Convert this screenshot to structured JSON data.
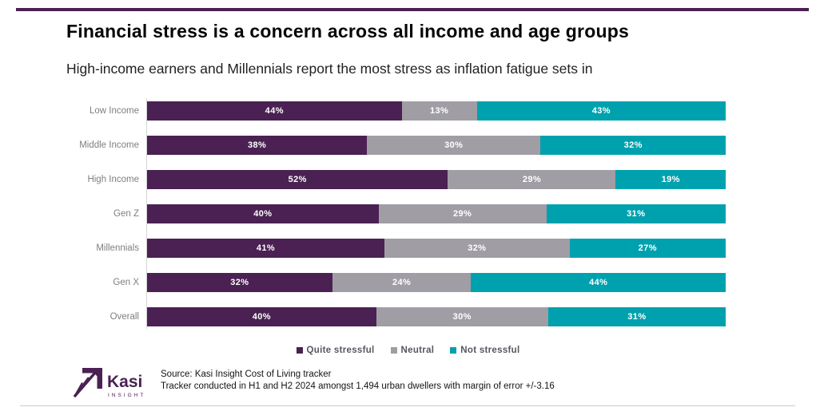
{
  "page": {
    "title": "Financial stress is a concern across all income and age groups",
    "subtitle": "High-income earners and Millennials report the most stress as inflation fatigue sets in"
  },
  "chart_data": {
    "type": "bar",
    "variant": "horizontal-100pct-stacked",
    "categories": [
      "Low Income",
      "Middle Income",
      "High Income",
      "Gen Z",
      "Millennials",
      "Gen X",
      "Overall"
    ],
    "series": [
      {
        "name": "Quite stressful",
        "color": "#4a2152",
        "values": [
          44,
          38,
          52,
          40,
          41,
          32,
          40
        ]
      },
      {
        "name": "Neutral",
        "color": "#a09da4",
        "values": [
          13,
          30,
          29,
          29,
          32,
          24,
          30
        ]
      },
      {
        "name": "Not stressful",
        "color": "#00a1ae",
        "values": [
          43,
          32,
          19,
          31,
          27,
          44,
          31
        ]
      }
    ],
    "value_suffix": "%",
    "data_labels": "inside-white-bold",
    "legend_position": "bottom",
    "grid": false,
    "xlim": [
      0,
      100
    ]
  },
  "footer": {
    "logo": {
      "brand": "Kasi",
      "sub": "INSIGHT",
      "color": "#4a2152"
    },
    "source_line1": "Source: Kasi Insight Cost of Living tracker",
    "source_line2": "Tracker conducted in H1 and H2 2024 amongst 1,494  urban dwellers with margin of error +/-3.16"
  },
  "colors": {
    "top_rule": "#4a2152",
    "axis_line": "#d6d6d6",
    "category_label": "#7f7f7f",
    "legend_text": "#595560",
    "bottom_rule": "#c9c9c9"
  }
}
